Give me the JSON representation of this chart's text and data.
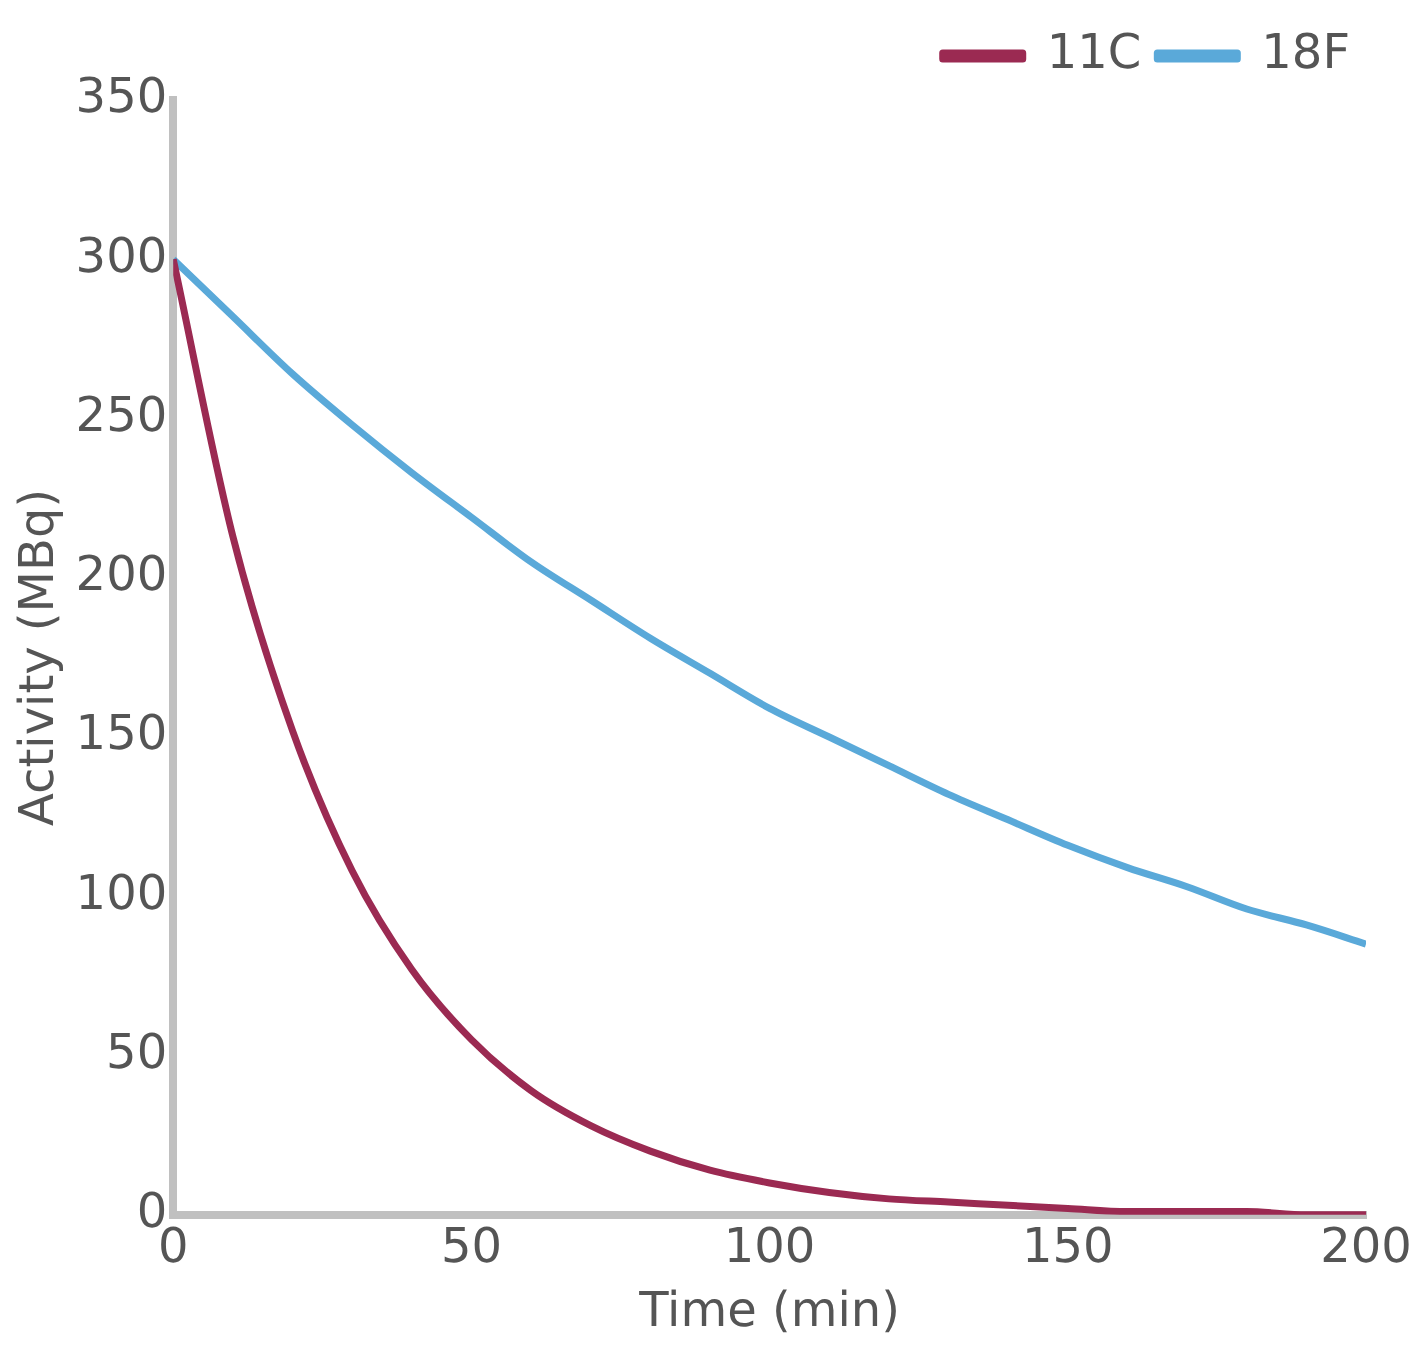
{
  "chart_data": {
    "type": "line",
    "xlabel": "Time (min)",
    "ylabel": "Activity (MBq)",
    "x": [
      0,
      10,
      20,
      30,
      40,
      50,
      60,
      70,
      80,
      90,
      100,
      110,
      120,
      130,
      140,
      150,
      160,
      170,
      180,
      190,
      200
    ],
    "series": [
      {
        "name": "11C",
        "color": "#9b2a52",
        "values": [
          300,
          213,
          152,
          108,
          77,
          55,
          39,
          28,
          20,
          14,
          10,
          7,
          5,
          4,
          3,
          2,
          1,
          1,
          1,
          0,
          0
        ]
      },
      {
        "name": "18F",
        "color": "#5aa9d9",
        "values": [
          300,
          282,
          264,
          248,
          233,
          219,
          205,
          193,
          181,
          170,
          159,
          150,
          141,
          132,
          124,
          116,
          109,
          103,
          96,
          91,
          85
        ]
      }
    ],
    "xlim": [
      0,
      200
    ],
    "xticks": [
      0,
      50,
      100,
      150,
      200
    ],
    "ylim": [
      0,
      350
    ],
    "yticks": [
      0,
      50,
      100,
      150,
      200,
      250,
      300,
      350
    ],
    "grid": false,
    "legend": "top right",
    "marker": "none",
    "line_style": "solid"
  }
}
